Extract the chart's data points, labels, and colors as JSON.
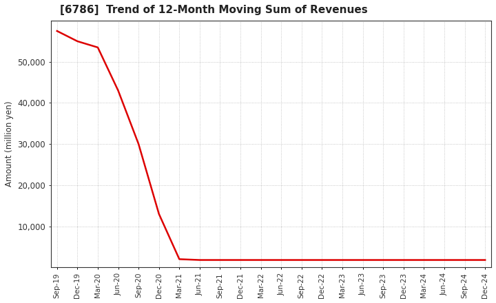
{
  "title": "[6786]  Trend of 12-Month Moving Sum of Revenues",
  "ylabel": "Amount (million yen)",
  "line_color": "#dd0000",
  "line_width": 1.8,
  "background_color": "#ffffff",
  "grid_color": "#999999",
  "ylim": [
    0,
    60000
  ],
  "yticks": [
    10000,
    20000,
    30000,
    40000,
    50000
  ],
  "x_labels": [
    "Sep-19",
    "Dec-19",
    "Mar-20",
    "Jun-20",
    "Sep-20",
    "Dec-20",
    "Mar-21",
    "Jun-21",
    "Sep-21",
    "Dec-21",
    "Mar-22",
    "Jun-22",
    "Sep-22",
    "Dec-22",
    "Mar-23",
    "Jun-23",
    "Sep-23",
    "Dec-23",
    "Mar-24",
    "Jun-24",
    "Sep-24",
    "Dec-24"
  ],
  "y_values": [
    57500,
    55000,
    53500,
    43000,
    30000,
    13000,
    2000,
    1800,
    1800,
    1800,
    1800,
    1800,
    1800,
    1800,
    1800,
    1800,
    1800,
    1800,
    1800,
    1800,
    1800,
    1800
  ]
}
